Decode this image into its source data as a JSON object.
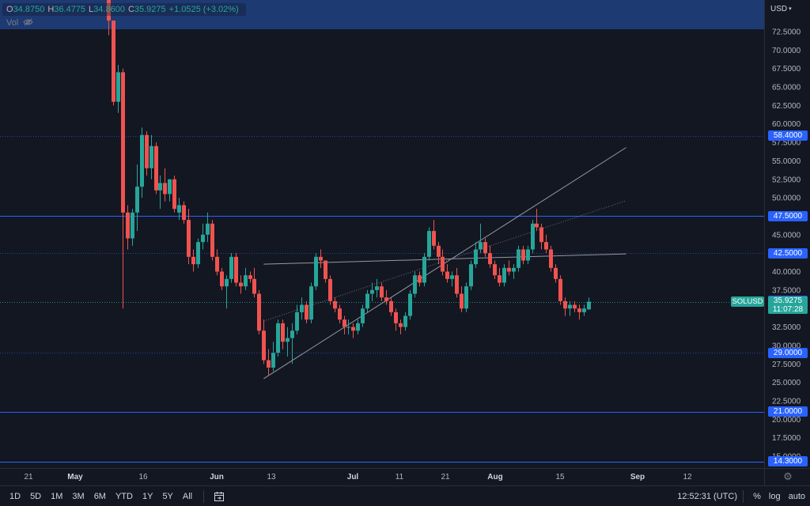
{
  "legend": {
    "open_label": "O",
    "open": "34.8750",
    "high_label": "H",
    "high": "36.4775",
    "low_label": "L",
    "low": "34.8600",
    "close_label": "C",
    "close": "35.9275",
    "change": "+1.0525 (+3.02%)",
    "vol_label": "Vol"
  },
  "currency": "USD",
  "colors": {
    "background": "#131722",
    "up": "#26a69a",
    "down": "#ef5350",
    "level_line": "#2962ff",
    "tag": "#2962ff",
    "header_band": "#1e3a73"
  },
  "chart_data": {
    "type": "candlestick",
    "ylim": [
      13.5,
      75.5
    ],
    "y_ticks": [
      "72.5000",
      "70.0000",
      "67.5000",
      "65.0000",
      "62.5000",
      "60.0000",
      "57.5000",
      "55.0000",
      "52.5000",
      "50.0000",
      "47.5000",
      "45.0000",
      "42.5000",
      "40.0000",
      "37.5000",
      "35.0000",
      "32.5000",
      "30.0000",
      "27.5000",
      "25.0000",
      "22.5000",
      "20.0000",
      "17.5000",
      "15.0000"
    ],
    "y_tick_values": [
      72.5,
      70,
      67.5,
      65,
      62.5,
      60,
      57.5,
      55,
      52.5,
      50,
      47.5,
      45,
      42.5,
      40,
      37.5,
      35,
      32.5,
      30,
      27.5,
      25,
      22.5,
      20,
      17.5,
      15
    ],
    "x_ticks": [
      {
        "label": "21",
        "bold": false
      },
      {
        "label": "May",
        "bold": true
      },
      {
        "label": "16",
        "bold": false
      },
      {
        "label": "Jun",
        "bold": true
      },
      {
        "label": "13",
        "bold": false
      },
      {
        "label": "Jul",
        "bold": true
      },
      {
        "label": "11",
        "bold": false
      },
      {
        "label": "21",
        "bold": false
      },
      {
        "label": "Aug",
        "bold": true
      },
      {
        "label": "15",
        "bold": false
      },
      {
        "label": "Sep",
        "bold": true
      },
      {
        "label": "12",
        "bold": false
      }
    ],
    "horizontal_levels": [
      {
        "value": 58.4,
        "label": "58.4000",
        "style": "dotted"
      },
      {
        "value": 47.5,
        "label": "47.5000",
        "style": "solid"
      },
      {
        "value": 42.5,
        "label": "42.5000",
        "style": "dotted"
      },
      {
        "value": 36.0,
        "label": "36.0000",
        "style": "hidden"
      },
      {
        "value": 29.0,
        "label": "29.0000",
        "style": "dotted"
      },
      {
        "value": 21.0,
        "label": "21.0000",
        "style": "solid"
      },
      {
        "value": 14.3,
        "label": "14.3000",
        "style": "solid"
      }
    ],
    "symbol": "SOLUSD",
    "last_price": "35.9275",
    "last_value": 35.93,
    "countdown": "11:07:28",
    "candles": [
      [
        80.0,
        82.0,
        72.0,
        74.0
      ],
      [
        74.0,
        74.0,
        62.5,
        63.0
      ],
      [
        63.0,
        68.0,
        61.5,
        67.0
      ],
      [
        67.0,
        67.5,
        35.0,
        48.0
      ],
      [
        48.0,
        49.0,
        43.0,
        44.5
      ],
      [
        44.5,
        48.5,
        43.5,
        48.0
      ],
      [
        48.0,
        54.5,
        45.5,
        51.5
      ],
      [
        51.5,
        59.5,
        50.0,
        58.5
      ],
      [
        58.5,
        59.0,
        53.0,
        54.0
      ],
      [
        54.0,
        58.5,
        52.5,
        57.0
      ],
      [
        57.0,
        57.5,
        50.5,
        51.0
      ],
      [
        51.0,
        53.0,
        48.5,
        52.0
      ],
      [
        52.0,
        54.0,
        49.5,
        50.5
      ],
      [
        50.5,
        52.5,
        49.5,
        52.5
      ],
      [
        52.5,
        53.0,
        48.0,
        48.5
      ],
      [
        48.0,
        50.0,
        47.0,
        49.0
      ],
      [
        49.0,
        49.5,
        46.5,
        47.0
      ],
      [
        47.0,
        48.5,
        41.0,
        42.0
      ],
      [
        42.0,
        43.0,
        40.0,
        41.0
      ],
      [
        41.0,
        44.5,
        40.5,
        44.0
      ],
      [
        44.0,
        46.5,
        43.0,
        45.0
      ],
      [
        45.0,
        48.0,
        44.0,
        46.5
      ],
      [
        46.5,
        47.0,
        41.5,
        42.0
      ],
      [
        42.0,
        43.0,
        39.5,
        40.0
      ],
      [
        40.0,
        40.5,
        37.5,
        38.0
      ],
      [
        38.0,
        39.5,
        35.0,
        39.0
      ],
      [
        39.0,
        42.5,
        38.5,
        42.0
      ],
      [
        42.0,
        42.5,
        38.0,
        38.5
      ],
      [
        38.5,
        39.5,
        37.0,
        38.0
      ],
      [
        38.0,
        40.5,
        37.5,
        39.5
      ],
      [
        39.5,
        40.0,
        38.5,
        39.0
      ],
      [
        39.0,
        40.5,
        36.5,
        37.0
      ],
      [
        37.0,
        37.5,
        31.5,
        32.0
      ],
      [
        32.0,
        33.5,
        27.5,
        28.0
      ],
      [
        28.0,
        29.5,
        26.0,
        27.0
      ],
      [
        27.0,
        30.5,
        26.5,
        29.0
      ],
      [
        29.0,
        33.5,
        28.5,
        33.0
      ],
      [
        33.0,
        33.5,
        29.5,
        30.5
      ],
      [
        30.5,
        32.5,
        28.5,
        31.0
      ],
      [
        31.0,
        33.0,
        27.5,
        32.0
      ],
      [
        32.0,
        35.5,
        31.5,
        34.5
      ],
      [
        34.5,
        36.5,
        33.5,
        35.5
      ],
      [
        35.5,
        36.0,
        33.0,
        33.5
      ],
      [
        33.5,
        38.5,
        33.0,
        38.0
      ],
      [
        38.0,
        42.5,
        37.5,
        42.0
      ],
      [
        42.0,
        43.0,
        40.5,
        41.5
      ],
      [
        41.5,
        41.5,
        38.5,
        39.0
      ],
      [
        39.0,
        39.5,
        35.5,
        36.0
      ],
      [
        36.0,
        36.5,
        34.5,
        35.0
      ],
      [
        35.0,
        35.5,
        33.0,
        33.5
      ],
      [
        33.5,
        34.0,
        31.5,
        32.5
      ],
      [
        32.5,
        33.5,
        31.5,
        32.5
      ],
      [
        32.5,
        33.0,
        31.0,
        32.0
      ],
      [
        32.0,
        33.5,
        31.5,
        33.0
      ],
      [
        33.0,
        35.5,
        32.5,
        35.0
      ],
      [
        35.0,
        37.5,
        34.5,
        37.0
      ],
      [
        37.0,
        38.5,
        36.0,
        37.5
      ],
      [
        37.5,
        39.0,
        36.5,
        38.0
      ],
      [
        38.0,
        38.5,
        36.0,
        36.5
      ],
      [
        36.5,
        37.5,
        35.5,
        36.0
      ],
      [
        36.0,
        36.5,
        34.0,
        34.5
      ],
      [
        34.5,
        35.0,
        32.0,
        33.0
      ],
      [
        33.0,
        33.5,
        31.5,
        32.5
      ],
      [
        32.5,
        34.5,
        32.0,
        34.0
      ],
      [
        34.0,
        37.5,
        33.5,
        37.0
      ],
      [
        37.0,
        40.0,
        36.5,
        39.5
      ],
      [
        39.5,
        40.0,
        38.0,
        38.5
      ],
      [
        38.5,
        42.5,
        38.0,
        42.0
      ],
      [
        42.0,
        46.0,
        41.5,
        45.5
      ],
      [
        45.5,
        47.0,
        43.0,
        43.5
      ],
      [
        43.5,
        44.0,
        41.0,
        42.0
      ],
      [
        42.0,
        43.0,
        39.5,
        40.0
      ],
      [
        40.0,
        41.0,
        38.5,
        39.0
      ],
      [
        39.0,
        40.0,
        38.0,
        39.5
      ],
      [
        39.5,
        40.5,
        36.5,
        37.0
      ],
      [
        37.0,
        38.0,
        34.5,
        35.0
      ],
      [
        35.0,
        38.5,
        34.5,
        38.0
      ],
      [
        38.0,
        41.5,
        37.5,
        41.0
      ],
      [
        41.0,
        44.0,
        40.5,
        43.0
      ],
      [
        43.0,
        46.5,
        42.5,
        44.0
      ],
      [
        44.0,
        44.5,
        42.0,
        42.5
      ],
      [
        42.5,
        43.5,
        40.5,
        41.0
      ],
      [
        41.0,
        41.5,
        39.0,
        39.5
      ],
      [
        39.5,
        40.5,
        38.0,
        38.5
      ],
      [
        38.5,
        41.0,
        38.0,
        40.5
      ],
      [
        40.5,
        41.5,
        39.5,
        40.0
      ],
      [
        40.0,
        41.0,
        39.0,
        40.5
      ],
      [
        40.5,
        43.5,
        40.0,
        43.0
      ],
      [
        43.0,
        43.5,
        41.0,
        41.5
      ],
      [
        41.5,
        43.5,
        41.0,
        43.0
      ],
      [
        43.0,
        47.0,
        42.5,
        46.5
      ],
      [
        46.5,
        48.5,
        45.5,
        46.0
      ],
      [
        46.0,
        46.5,
        43.0,
        44.0
      ],
      [
        44.0,
        45.0,
        42.5,
        43.0
      ],
      [
        43.0,
        43.5,
        40.0,
        40.5
      ],
      [
        40.5,
        41.0,
        38.5,
        39.0
      ],
      [
        39.0,
        39.5,
        35.5,
        36.0
      ],
      [
        36.0,
        36.5,
        34.0,
        35.0
      ],
      [
        35.0,
        36.0,
        34.0,
        35.5
      ],
      [
        35.5,
        36.0,
        34.5,
        35.0
      ],
      [
        35.0,
        35.5,
        33.5,
        34.5
      ],
      [
        34.5,
        35.5,
        34.0,
        35.0
      ],
      [
        34.875,
        36.4775,
        34.86,
        35.9275
      ]
    ],
    "trend_lines": [
      {
        "from": [
          33,
          25.5
        ],
        "to": [
          110,
          56.8
        ],
        "style": "solid"
      },
      {
        "from": [
          33,
          33.3
        ],
        "to": [
          110,
          49.6
        ],
        "style": "dotted"
      },
      {
        "from": [
          33,
          41.0
        ],
        "to": [
          110,
          42.4
        ],
        "style": "solid"
      }
    ]
  },
  "bottom_bar": {
    "ranges": [
      "1D",
      "5D",
      "1M",
      "3M",
      "6M",
      "YTD",
      "1Y",
      "5Y",
      "All"
    ],
    "time": "12:52:31 (UTC)",
    "percent": "%",
    "log": "log",
    "auto": "auto"
  }
}
